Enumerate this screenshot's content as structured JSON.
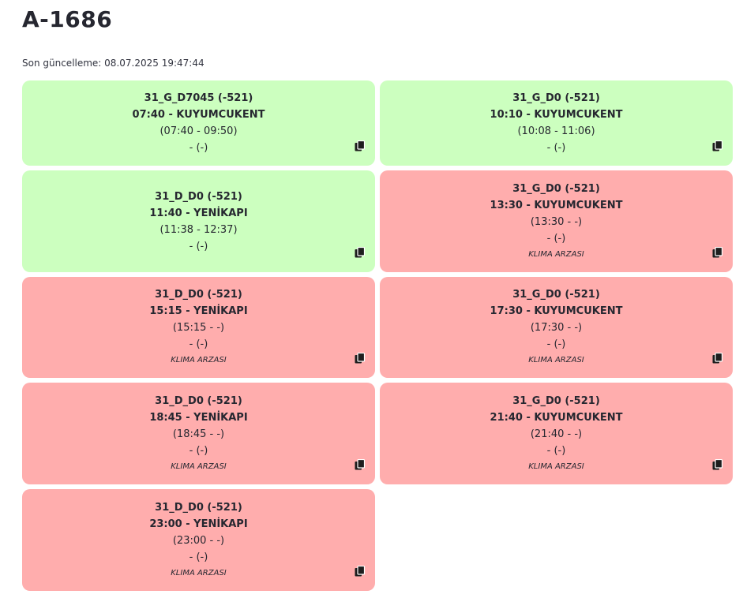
{
  "page": {
    "title": "A-1686",
    "last_update": "Son güncelleme: 08.07.2025 19:47:44"
  },
  "colors": {
    "ok": "#ccffbf",
    "fault": "#ffadad"
  },
  "icons": {
    "copy": "copy-icon"
  },
  "cards": [
    {
      "trip": "31_G_D7045 (-521)",
      "time_dest": "07:40 - KUYUMCUKENT",
      "range": "(07:40 - 09:50)",
      "driver": "- (-)",
      "note": "",
      "status": "ok"
    },
    {
      "trip": "31_G_D0 (-521)",
      "time_dest": "10:10 - KUYUMCUKENT",
      "range": "(10:08 - 11:06)",
      "driver": "- (-)",
      "note": "",
      "status": "ok"
    },
    {
      "trip": "31_D_D0 (-521)",
      "time_dest": "11:40 - YENİKAPI",
      "range": "(11:38 - 12:37)",
      "driver": "- (-)",
      "note": "",
      "status": "ok"
    },
    {
      "trip": "31_G_D0 (-521)",
      "time_dest": "13:30 - KUYUMCUKENT",
      "range": "(13:30 - -)",
      "driver": "- (-)",
      "note": "KLIMA ARZASI",
      "status": "fault"
    },
    {
      "trip": "31_D_D0 (-521)",
      "time_dest": "15:15 - YENİKAPI",
      "range": "(15:15 - -)",
      "driver": "- (-)",
      "note": "KLIMA ARZASI",
      "status": "fault"
    },
    {
      "trip": "31_G_D0 (-521)",
      "time_dest": "17:30 - KUYUMCUKENT",
      "range": "(17:30 - -)",
      "driver": "- (-)",
      "note": "KLIMA ARZASI",
      "status": "fault"
    },
    {
      "trip": "31_D_D0 (-521)",
      "time_dest": "18:45 - YENİKAPI",
      "range": "(18:45 - -)",
      "driver": "- (-)",
      "note": "KLIMA ARZASI",
      "status": "fault"
    },
    {
      "trip": "31_G_D0 (-521)",
      "time_dest": "21:40 - KUYUMCUKENT",
      "range": "(21:40 - -)",
      "driver": "- (-)",
      "note": "KLIMA ARZASI",
      "status": "fault"
    },
    {
      "trip": "31_D_D0 (-521)",
      "time_dest": "23:00 - YENİKAPI",
      "range": "(23:00 - -)",
      "driver": "- (-)",
      "note": "KLIMA ARZASI",
      "status": "fault"
    }
  ]
}
